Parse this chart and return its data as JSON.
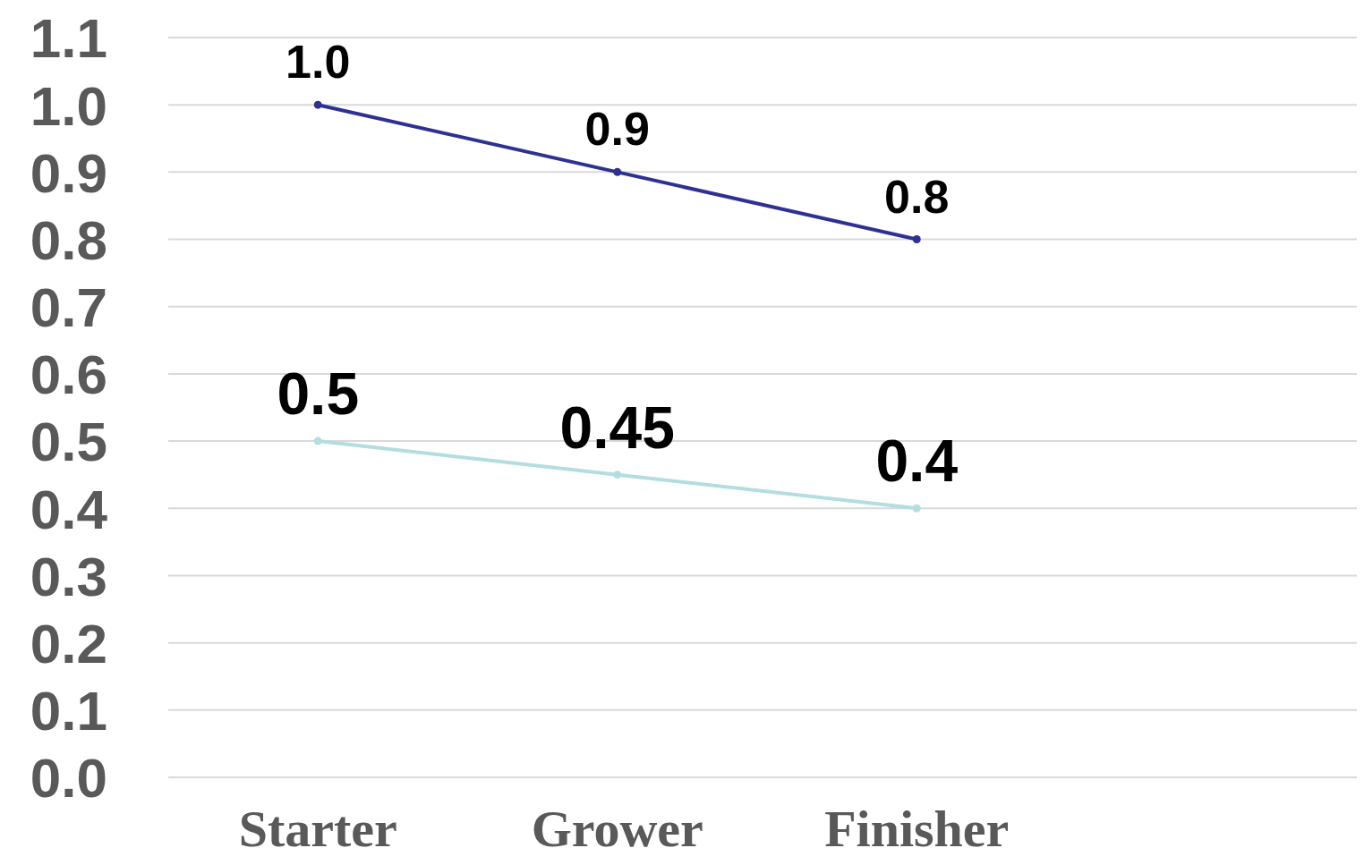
{
  "chart_data": {
    "type": "line",
    "categories": [
      "Starter",
      "Grower",
      "Finisher",
      null
    ],
    "series": [
      {
        "color": "#2e3192",
        "values": [
          1.0,
          0.9,
          0.8,
          null
        ],
        "value_labels": [
          "1.0",
          "0.9",
          "0.8",
          null
        ]
      },
      {
        "color": "#b4dde0",
        "values": [
          0.5,
          0.45,
          0.4,
          null
        ],
        "value_labels": [
          "0.5",
          "0.45",
          "0.4",
          null
        ]
      }
    ],
    "ylim": [
      0,
      1.1
    ],
    "yticks": [
      {
        "value": 0,
        "label": "0.0"
      },
      {
        "value": 0.1,
        "label": "0.1"
      },
      {
        "value": 0.2,
        "label": "0.2"
      },
      {
        "value": 0.3,
        "label": "0.3"
      },
      {
        "value": 0.4,
        "label": "0.4"
      },
      {
        "value": 0.5,
        "label": "0.5"
      },
      {
        "value": 0.6,
        "label": "0.6"
      },
      {
        "value": 0.7,
        "label": "0.7"
      },
      {
        "value": 0.8,
        "label": "0.8"
      },
      {
        "value": 0.9,
        "label": "0.9"
      },
      {
        "value": 1,
        "label": "1.0"
      },
      {
        "value": 1.1,
        "label": "1.1"
      }
    ],
    "grid": "y",
    "marker": "circle",
    "line_style": "solid"
  }
}
